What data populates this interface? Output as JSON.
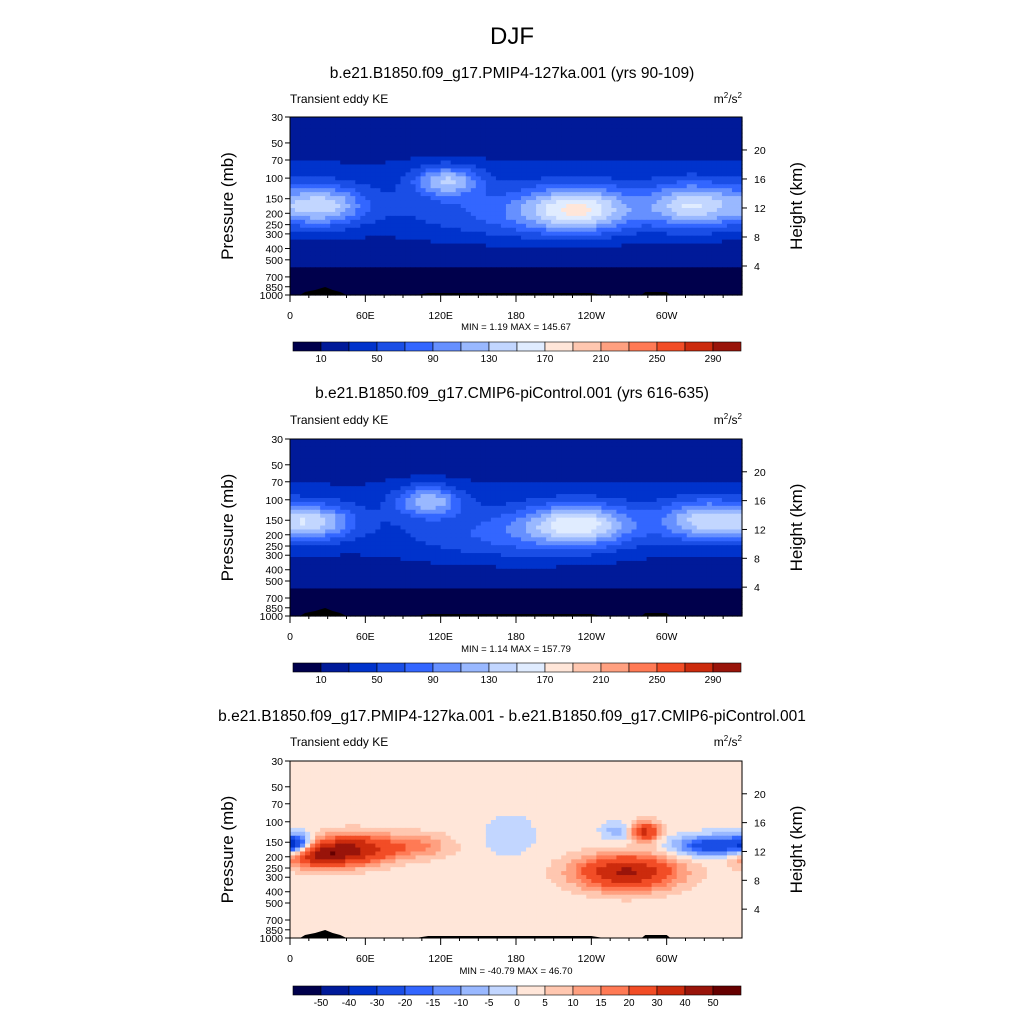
{
  "page_title": "DJF",
  "chart_data": [
    {
      "type": "heatmap",
      "title": "b.e21.B1850.f09_g17.PMIP4-127ka.001 (yrs 90-109)",
      "subtitle_left": "Transient eddy KE",
      "units": "m²/s²",
      "units_base": "m",
      "units_exp": "2",
      "units_mid": "/s",
      "units_exp2": "2",
      "ylabel": "Pressure (mb)",
      "y2label": "Height (km)",
      "x_ticks": [
        "0",
        "60E",
        "120E",
        "180",
        "120W",
        "60W"
      ],
      "x_tick_lon": [
        0,
        60,
        120,
        180,
        240,
        300
      ],
      "xlim": [
        0,
        360
      ],
      "y_ticks": [
        "30",
        "50",
        "70",
        "100",
        "150",
        "200",
        "250",
        "300",
        "400",
        "500",
        "700",
        "850",
        "1000"
      ],
      "y_tick_p": [
        30,
        50,
        70,
        100,
        150,
        200,
        250,
        300,
        400,
        500,
        700,
        850,
        1000
      ],
      "ylim": [
        1000,
        30
      ],
      "y_scale": "log",
      "y2_ticks": [
        "4",
        "8",
        "12",
        "16",
        "20"
      ],
      "stats": "MIN =   1.19  MAX = 145.67",
      "colorbar": {
        "labels": [
          "10",
          "50",
          "90",
          "130",
          "170",
          "210",
          "250",
          "290"
        ],
        "levels": [
          10,
          30,
          50,
          70,
          90,
          110,
          130,
          150,
          170,
          190,
          210,
          230,
          250,
          270,
          290
        ]
      },
      "field": {
        "kind": "full",
        "max": 145.67,
        "min": 1.19
      }
    },
    {
      "type": "heatmap",
      "title": "b.e21.B1850.f09_g17.CMIP6-piControl.001 (yrs 616-635)",
      "subtitle_left": "Transient eddy KE",
      "units": "m²/s²",
      "units_base": "m",
      "units_exp": "2",
      "units_mid": "/s",
      "units_exp2": "2",
      "ylabel": "Pressure (mb)",
      "y2label": "Height (km)",
      "x_ticks": [
        "0",
        "60E",
        "120E",
        "180",
        "120W",
        "60W"
      ],
      "x_tick_lon": [
        0,
        60,
        120,
        180,
        240,
        300
      ],
      "xlim": [
        0,
        360
      ],
      "y_ticks": [
        "30",
        "50",
        "70",
        "100",
        "150",
        "200",
        "250",
        "300",
        "400",
        "500",
        "700",
        "850",
        "1000"
      ],
      "y_tick_p": [
        30,
        50,
        70,
        100,
        150,
        200,
        250,
        300,
        400,
        500,
        700,
        850,
        1000
      ],
      "ylim": [
        1000,
        30
      ],
      "y_scale": "log",
      "y2_ticks": [
        "4",
        "8",
        "12",
        "16",
        "20"
      ],
      "stats": "MIN =   1.14  MAX = 157.79",
      "colorbar": {
        "labels": [
          "10",
          "50",
          "90",
          "130",
          "170",
          "210",
          "250",
          "290"
        ],
        "levels": [
          10,
          30,
          50,
          70,
          90,
          110,
          130,
          150,
          170,
          190,
          210,
          230,
          250,
          270,
          290
        ]
      },
      "field": {
        "kind": "full2",
        "max": 157.79,
        "min": 1.14
      }
    },
    {
      "type": "heatmap",
      "title": "b.e21.B1850.f09_g17.PMIP4-127ka.001 - b.e21.B1850.f09_g17.CMIP6-piControl.001",
      "subtitle_left": "Transient eddy KE",
      "units": "m²/s²",
      "units_base": "m",
      "units_exp": "2",
      "units_mid": "/s",
      "units_exp2": "2",
      "ylabel": "Pressure (mb)",
      "y2label": "Height (km)",
      "x_ticks": [
        "0",
        "60E",
        "120E",
        "180",
        "120W",
        "60W"
      ],
      "x_tick_lon": [
        0,
        60,
        120,
        180,
        240,
        300
      ],
      "xlim": [
        0,
        360
      ],
      "y_ticks": [
        "30",
        "50",
        "70",
        "100",
        "150",
        "200",
        "250",
        "300",
        "400",
        "500",
        "700",
        "850",
        "1000"
      ],
      "y_tick_p": [
        30,
        50,
        70,
        100,
        150,
        200,
        250,
        300,
        400,
        500,
        700,
        850,
        1000
      ],
      "ylim": [
        1000,
        30
      ],
      "y_scale": "log",
      "y2_ticks": [
        "4",
        "8",
        "12",
        "16",
        "20"
      ],
      "stats": "MIN = -40.79  MAX =  46.70",
      "colorbar": {
        "labels": [
          "-50",
          "-40",
          "-30",
          "-20",
          "-15",
          "-10",
          "-5",
          "0",
          "5",
          "10",
          "15",
          "20",
          "30",
          "40",
          "50"
        ],
        "levels": [
          -50,
          -40,
          -30,
          -20,
          -15,
          -10,
          -5,
          0,
          5,
          10,
          15,
          20,
          30,
          40,
          50
        ]
      },
      "field": {
        "kind": "diff",
        "max": 46.7,
        "min": -40.79
      }
    }
  ],
  "palette": [
    "#00004c",
    "#001a99",
    "#0033cc",
    "#1a4ee6",
    "#3366ff",
    "#6690ff",
    "#99b8ff",
    "#c2d6ff",
    "#e0ecff",
    "#ffe6d9",
    "#ffc7b0",
    "#ffa080",
    "#ff7a55",
    "#f24d26",
    "#cc2b0d",
    "#99140a",
    "#660000"
  ]
}
